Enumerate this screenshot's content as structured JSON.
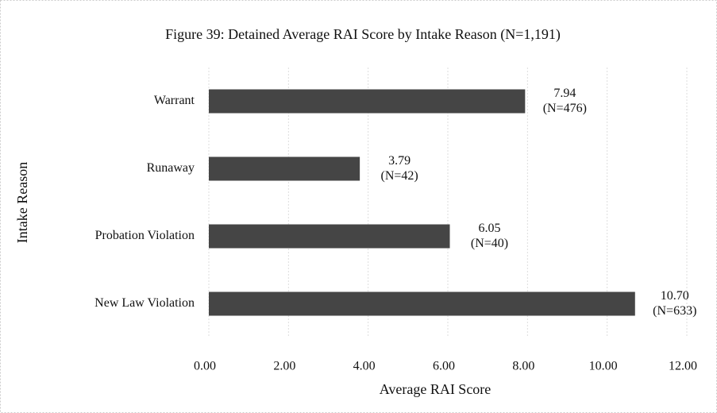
{
  "chart_data": {
    "type": "bar",
    "orientation": "horizontal",
    "title": "Figure 39: Detained Average RAI Score by Intake Reason (N=1,191)",
    "x_label": "Average RAI Score",
    "y_label": "Intake Reason",
    "categories": [
      "Warrant",
      "Runaway",
      "Probation Violation",
      "New Law Violation"
    ],
    "values": [
      7.94,
      3.79,
      6.05,
      10.7
    ],
    "value_labels": [
      "7.94",
      "3.79",
      "6.05",
      "10.70"
    ],
    "n_labels": [
      "(N=476)",
      "(N=42)",
      "(N=40)",
      "(N=633)"
    ],
    "color": "#454545",
    "xlim": [
      0,
      12
    ],
    "xticks": [
      {
        "value": 0,
        "label": "0.00"
      },
      {
        "value": 2,
        "label": "2.00"
      },
      {
        "value": 4,
        "label": "4.00"
      },
      {
        "value": 6,
        "label": "6.00"
      },
      {
        "value": 8,
        "label": "8.00"
      },
      {
        "value": 10,
        "label": "10.00"
      },
      {
        "value": 12,
        "label": "12.00"
      }
    ],
    "grid": true
  }
}
